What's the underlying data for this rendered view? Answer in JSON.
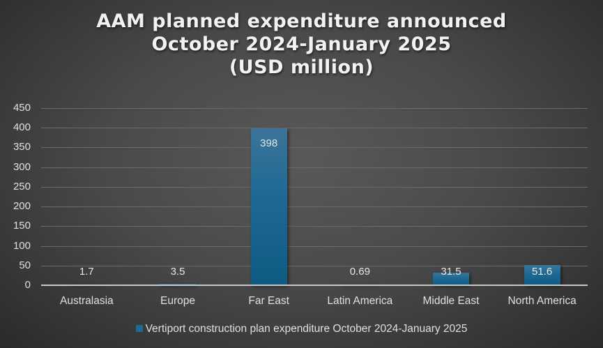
{
  "chart_data": {
    "type": "bar",
    "title": "AAM planned expenditure announced October 2024-January 2025 (USD million)",
    "title_lines": [
      "AAM planned expenditure announced",
      "October 2024-January 2025",
      "(USD million)"
    ],
    "categories": [
      "Australasia",
      "Europe",
      "Far East",
      "Latin America",
      "Middle East",
      "North America"
    ],
    "series": [
      {
        "name": "Vertiport construction plan expenditure October 2024-January 2025",
        "values": [
          1.7,
          3.5,
          398,
          0.69,
          31.5,
          51.6
        ],
        "labels": [
          "1.7",
          "3.5",
          "398",
          "0.69",
          "31.5",
          "51.6"
        ],
        "color": "#1f6a94"
      }
    ],
    "xlabel": "",
    "ylabel": "",
    "ylim": [
      0,
      450
    ],
    "yticks": [
      "0",
      "50",
      "100",
      "150",
      "200",
      "250",
      "300",
      "350",
      "400",
      "450"
    ],
    "grid": true,
    "legend_position": "bottom"
  }
}
